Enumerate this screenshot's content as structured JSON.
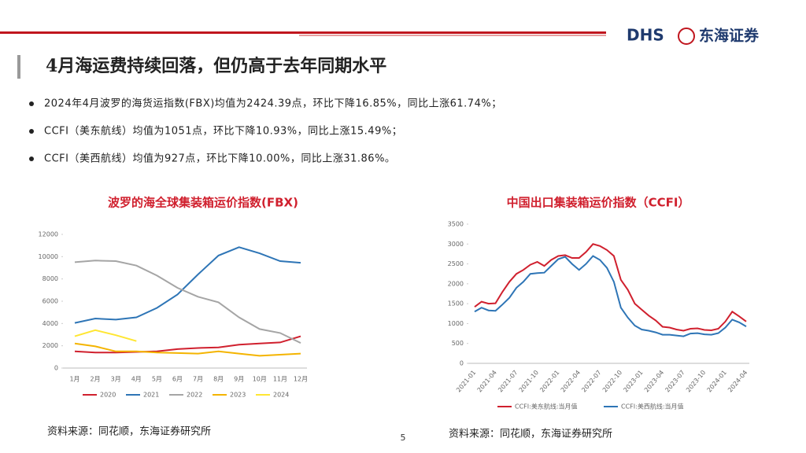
{
  "header": {
    "title": "4月海运费持续回落，但仍高于去年同期水平",
    "logo_mark": "DHS",
    "logo_name": "东海证券"
  },
  "bullets": [
    "2024年4月波罗的海货运指数(FBX)均值为2424.39点，环比下降16.85%，同比上涨61.74%；",
    "CCFI（美东航线）均值为1051点，环比下降10.93%，同比上涨15.49%；",
    "CCFI（美西航线）均值为927点，环比下降10.00%，同比上涨31.86%。"
  ],
  "chart_data": [
    {
      "type": "line",
      "title": "波罗的海全球集装箱运价指数(FBX)",
      "categories": [
        "1月",
        "2月",
        "3月",
        "4月",
        "5月",
        "6月",
        "7月",
        "8月",
        "9月",
        "10月",
        "11月",
        "12月"
      ],
      "ylim": [
        0,
        12000
      ],
      "yticks": [
        0,
        2000,
        4000,
        6000,
        8000,
        10000,
        12000
      ],
      "legend": "bottom",
      "series": [
        {
          "name": "2020",
          "color": "#d0202e",
          "values": [
            1500,
            1400,
            1400,
            1450,
            1500,
            1700,
            1800,
            1850,
            2100,
            2200,
            2300,
            2850
          ]
        },
        {
          "name": "2021",
          "color": "#2e75b6",
          "values": [
            4050,
            4450,
            4350,
            4550,
            5400,
            6600,
            8400,
            10100,
            10850,
            10300,
            9600,
            9450
          ]
        },
        {
          "name": "2022",
          "color": "#a5a5a5",
          "values": [
            9500,
            9650,
            9600,
            9200,
            8300,
            7200,
            6400,
            5900,
            4550,
            3500,
            3150,
            2250
          ]
        },
        {
          "name": "2023",
          "color": "#f4b400",
          "values": [
            2200,
            1950,
            1500,
            1500,
            1400,
            1350,
            1300,
            1500,
            1300,
            1100,
            1200,
            1300
          ]
        },
        {
          "name": "2024",
          "color": "#ffe632",
          "values": [
            2850,
            3400,
            2950,
            2424.39,
            null,
            null,
            null,
            null,
            null,
            null,
            null,
            null
          ]
        }
      ]
    },
    {
      "type": "line",
      "title": "中国出口集装箱运价指数（CCFI）",
      "categories": [
        "2021-01",
        null,
        null,
        "2021-04",
        null,
        null,
        "2021-07",
        null,
        null,
        "2021-10",
        null,
        null,
        "2022-01",
        null,
        null,
        "2022-04",
        null,
        null,
        "2022-07",
        null,
        null,
        "2022-10",
        null,
        null,
        "2023-01",
        null,
        null,
        "2023-04",
        null,
        null,
        "2023-07",
        null,
        null,
        "2023-10",
        null,
        null,
        "2024-01",
        null,
        null,
        "2024-04"
      ],
      "ylim": [
        0,
        3500
      ],
      "yticks": [
        0,
        500,
        1000,
        1500,
        2000,
        2500,
        3000,
        3500
      ],
      "legend": "bottom",
      "series": [
        {
          "name": "CCFI:美东航线:当月值",
          "color": "#d0202e",
          "values": [
            1420,
            1550,
            1500,
            1510,
            1800,
            2050,
            2250,
            2350,
            2480,
            2550,
            2450,
            2600,
            2700,
            2720,
            2650,
            2650,
            2800,
            3000,
            2950,
            2850,
            2700,
            2100,
            1850,
            1500,
            1350,
            1200,
            1080,
            920,
            900,
            850,
            820,
            870,
            880,
            840,
            830,
            870,
            1050,
            1300,
            1180,
            1051
          ]
        },
        {
          "name": "CCFI:美西航线:当月值",
          "color": "#2e75b6",
          "values": [
            1300,
            1400,
            1330,
            1320,
            1480,
            1650,
            1900,
            2050,
            2250,
            2270,
            2280,
            2450,
            2620,
            2680,
            2500,
            2350,
            2500,
            2700,
            2600,
            2400,
            2050,
            1400,
            1150,
            950,
            850,
            820,
            780,
            720,
            720,
            700,
            680,
            750,
            760,
            730,
            720,
            760,
            900,
            1100,
            1030,
            927
          ]
        }
      ]
    }
  ],
  "sources": [
    "资料来源：同花顺，东海证券研究所",
    "资料来源：同花顺，东海证券研究所"
  ],
  "page_number": "5"
}
